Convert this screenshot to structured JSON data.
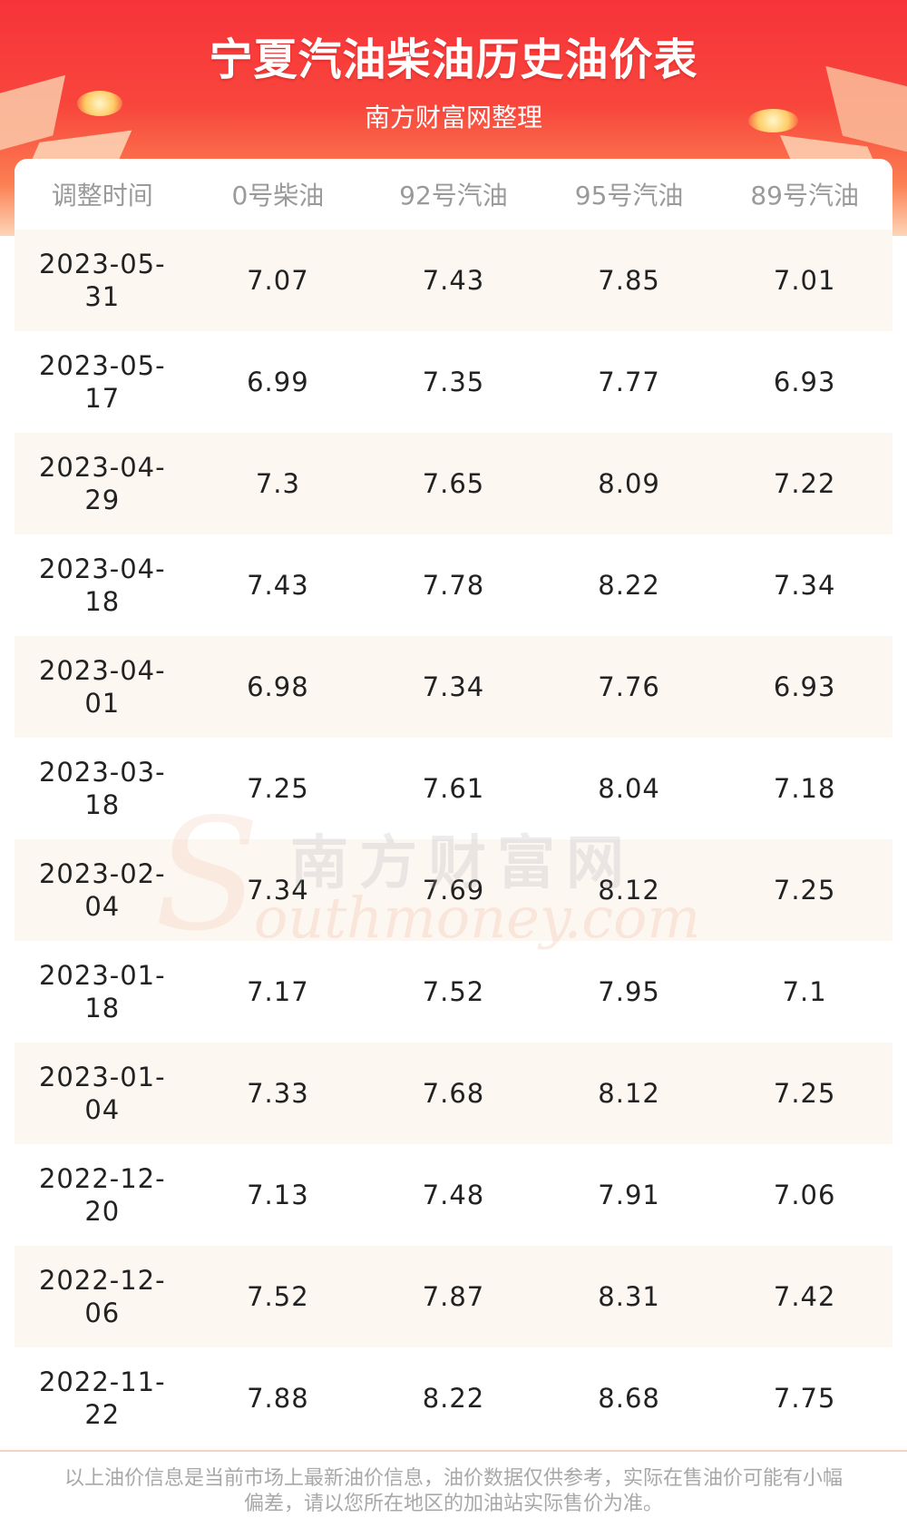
{
  "header": {
    "title": "宁夏汽油柴油历史油价表",
    "subtitle": "南方财富网整理"
  },
  "table": {
    "columns": [
      "调整时间",
      "0号柴油",
      "92号汽油",
      "95号汽油",
      "89号汽油"
    ],
    "rows": [
      {
        "date_1": "2023-05-",
        "date_2": "31",
        "diesel0": "7.07",
        "gas92": "7.43",
        "gas95": "7.85",
        "gas89": "7.01"
      },
      {
        "date_1": "2023-05-",
        "date_2": "17",
        "diesel0": "6.99",
        "gas92": "7.35",
        "gas95": "7.77",
        "gas89": "6.93"
      },
      {
        "date_1": "2023-04-",
        "date_2": "29",
        "diesel0": "7.3",
        "gas92": "7.65",
        "gas95": "8.09",
        "gas89": "7.22"
      },
      {
        "date_1": "2023-04-",
        "date_2": "18",
        "diesel0": "7.43",
        "gas92": "7.78",
        "gas95": "8.22",
        "gas89": "7.34"
      },
      {
        "date_1": "2023-04-",
        "date_2": "01",
        "diesel0": "6.98",
        "gas92": "7.34",
        "gas95": "7.76",
        "gas89": "6.93"
      },
      {
        "date_1": "2023-03-",
        "date_2": "18",
        "diesel0": "7.25",
        "gas92": "7.61",
        "gas95": "8.04",
        "gas89": "7.18"
      },
      {
        "date_1": "2023-02-",
        "date_2": "04",
        "diesel0": "7.34",
        "gas92": "7.69",
        "gas95": "8.12",
        "gas89": "7.25"
      },
      {
        "date_1": "2023-01-",
        "date_2": "18",
        "diesel0": "7.17",
        "gas92": "7.52",
        "gas95": "7.95",
        "gas89": "7.1"
      },
      {
        "date_1": "2023-01-",
        "date_2": "04",
        "diesel0": "7.33",
        "gas92": "7.68",
        "gas95": "8.12",
        "gas89": "7.25"
      },
      {
        "date_1": "2022-12-",
        "date_2": "20",
        "diesel0": "7.13",
        "gas92": "7.48",
        "gas95": "7.91",
        "gas89": "7.06"
      },
      {
        "date_1": "2022-12-",
        "date_2": "06",
        "diesel0": "7.52",
        "gas92": "7.87",
        "gas95": "8.31",
        "gas89": "7.42"
      },
      {
        "date_1": "2022-11-",
        "date_2": "22",
        "diesel0": "7.88",
        "gas92": "8.22",
        "gas95": "8.68",
        "gas89": "7.75"
      }
    ]
  },
  "watermark": {
    "cn": "南方财富网",
    "en": "outhmoney.com",
    "initial": "S"
  },
  "footer": {
    "line_1": "以上油价信息是当前市场上最新油价信息，油价数据仅供参考，实际在售油价可能有小幅",
    "line_2": "偏差，请以您所在地区的加油站实际售价为准。"
  },
  "colors": {
    "header_red": "#f7333a",
    "row_alt": "#fdf7f2",
    "header_text": "#9a9a9a"
  }
}
